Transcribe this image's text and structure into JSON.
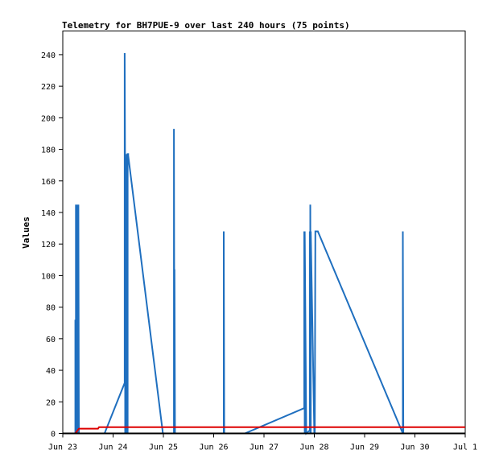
{
  "chart_data": {
    "type": "line",
    "title": "Telemetry for BH7PUE-9 over last 240 hours (75 points)",
    "ylabel": "Values",
    "xlabel": "",
    "ylim": [
      0,
      255
    ],
    "xlim": [
      0,
      8
    ],
    "y_ticks": [
      0,
      20,
      40,
      60,
      80,
      100,
      120,
      140,
      160,
      180,
      200,
      220,
      240
    ],
    "x_ticks": [
      {
        "x": 0,
        "label": "Jun 23"
      },
      {
        "x": 1,
        "label": "Jun 24"
      },
      {
        "x": 2,
        "label": "Jun 25"
      },
      {
        "x": 3,
        "label": "Jun 26"
      },
      {
        "x": 4,
        "label": "Jun 27"
      },
      {
        "x": 5,
        "label": "Jun 28"
      },
      {
        "x": 6,
        "label": "Jun 29"
      },
      {
        "x": 7,
        "label": "Jun 30"
      },
      {
        "x": 8,
        "label": "Jul 1"
      }
    ],
    "grid": false,
    "series": [
      {
        "color": "#1f6fbf",
        "x": [
          0.25,
          0.25,
          0.26,
          0.26,
          0.27,
          0.27,
          0.28,
          0.28,
          0.29,
          0.29,
          0.3,
          0.3,
          0.31,
          0.31,
          0.32,
          0.32,
          0.83,
          1.23,
          1.23,
          1.24,
          1.24,
          1.25,
          1.25,
          1.27,
          1.27,
          1.28,
          1.28,
          1.29,
          1.29,
          1.3,
          1.3,
          1.99,
          2.21,
          2.21,
          2.22,
          2.22,
          2.23,
          2.23,
          2.24,
          2.24,
          3.2,
          3.2,
          3.21,
          3.21,
          3.62,
          4.8,
          4.8,
          4.81,
          4.81,
          4.84,
          4.84,
          4.91,
          4.91,
          4.92,
          4.92,
          4.93,
          4.93,
          5.0,
          5.0,
          5.01,
          5.01,
          5.02,
          5.02,
          5.07,
          6.76,
          6.76,
          6.77,
          6.77,
          6.78,
          6.78,
          6.79,
          6.79,
          6.8,
          6.8,
          6.81
        ],
        "y": [
          0,
          72,
          0,
          145,
          0,
          112,
          0,
          145,
          0,
          60,
          0,
          20,
          0,
          145,
          0,
          0,
          0,
          32,
          241,
          152,
          0,
          175,
          0,
          177,
          160,
          175,
          0,
          0,
          177,
          177,
          176,
          0,
          0,
          193,
          0,
          104,
          0,
          0,
          0,
          0,
          0,
          128,
          0,
          0,
          0,
          16,
          128,
          0,
          128,
          0,
          0,
          2,
          128,
          0,
          145,
          0,
          128,
          0,
          0,
          0,
          0,
          128,
          128,
          128,
          0,
          128,
          0,
          0,
          0,
          0,
          0,
          0,
          0,
          0,
          0
        ]
      },
      {
        "color": "#dd0000",
        "x": [
          0.25,
          0.32,
          0.35,
          0.5,
          0.7,
          0.72,
          1.5,
          3.0,
          5.0,
          6.5,
          7.4,
          7.42,
          8.0
        ],
        "y": [
          0,
          3,
          3,
          3,
          3,
          4,
          4,
          4,
          4,
          4,
          4,
          4,
          4
        ]
      },
      {
        "color": "#000000",
        "x": [
          0,
          8
        ],
        "y": [
          0,
          0
        ]
      }
    ]
  }
}
